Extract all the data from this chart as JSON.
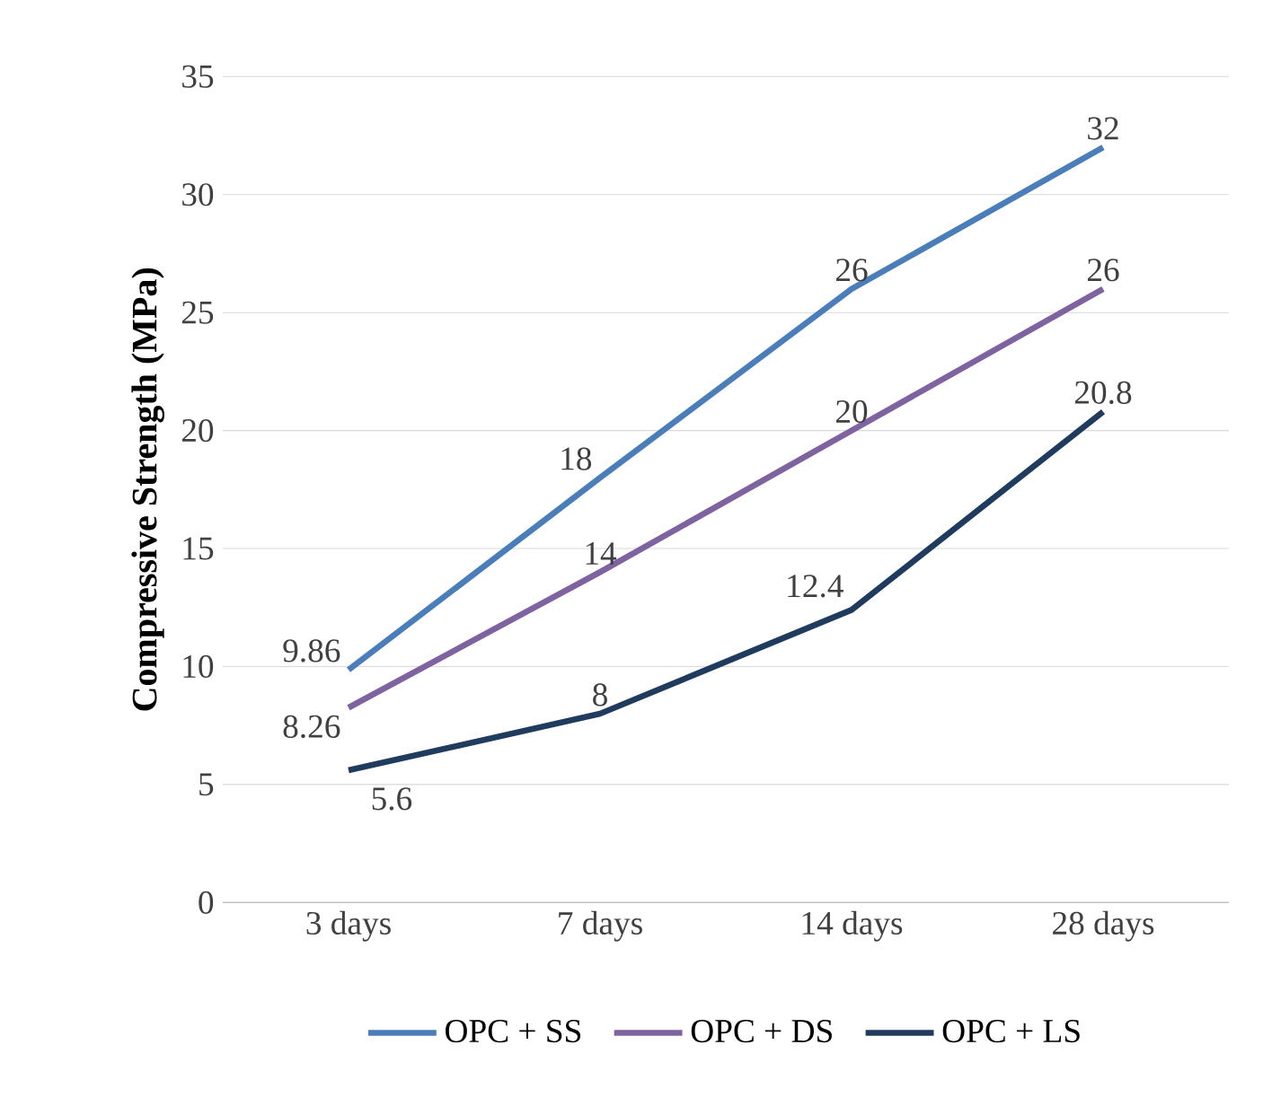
{
  "chart_data": {
    "type": "line",
    "ylabel": "Compressive Strength (MPa)",
    "categories": [
      "3  days",
      "7  days",
      "14 days",
      "28 days"
    ],
    "series": [
      {
        "name": "OPC + SS",
        "color": "#4a7ebb",
        "values": [
          9.86,
          18,
          26,
          32
        ],
        "value_labels": [
          "9.86",
          "18",
          "26",
          "32"
        ]
      },
      {
        "name": "OPC + DS",
        "color": "#7f63a1",
        "values": [
          8.26,
          14,
          20,
          26
        ],
        "value_labels": [
          "8.26",
          "14",
          "20",
          "26"
        ]
      },
      {
        "name": "OPC + LS",
        "color": "#1f3b5e",
        "values": [
          5.6,
          8,
          12.4,
          20.8
        ],
        "value_labels": [
          "5.6",
          "8",
          "12.4",
          "20.8"
        ]
      }
    ],
    "ylim": [
      0,
      35
    ],
    "yticks": [
      0,
      5,
      10,
      15,
      20,
      25,
      30,
      35
    ],
    "grid": "y",
    "legend": "bottom",
    "marker": "none",
    "line_style": "solid"
  }
}
